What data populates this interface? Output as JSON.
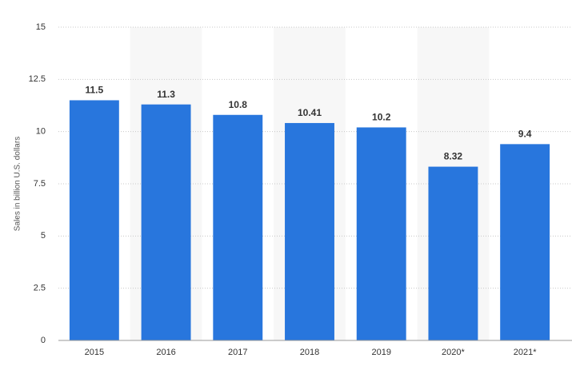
{
  "chart_data": {
    "type": "bar",
    "y_label": "Sales in billion U.S. dollars",
    "categories": [
      "2015",
      "2016",
      "2017",
      "2018",
      "2019",
      "2020*",
      "2021*"
    ],
    "values": [
      11.5,
      11.3,
      10.8,
      10.41,
      10.2,
      8.32,
      9.4
    ],
    "color": "#2876dd",
    "ylim": [
      0,
      15
    ],
    "yticks": [
      0,
      2.5,
      5,
      7.5,
      10,
      12.5,
      15
    ],
    "grid": true
  }
}
